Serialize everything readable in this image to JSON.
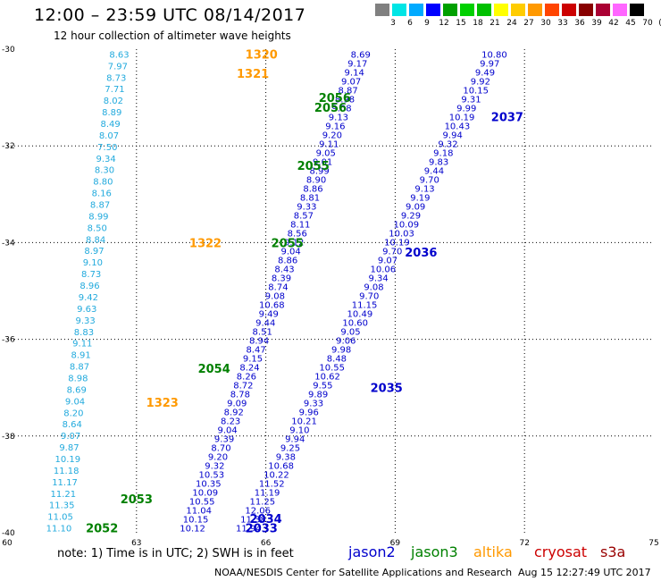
{
  "header": {
    "title": "12:00 – 23:59 UTC 08/14/2017",
    "subtitle": "12 hour collection of altimeter wave heights"
  },
  "scale": {
    "colors": [
      "#808080",
      "#00e5e5",
      "#00aaff",
      "#0000ff",
      "#00a000",
      "#00d000",
      "#00c000",
      "#ffff00",
      "#ffcc00",
      "#ff9900",
      "#ff4400",
      "#cc0000",
      "#880000",
      "#aa0033",
      "#ff66ff",
      "#000000"
    ],
    "labels": [
      "3",
      "6",
      "9",
      "12",
      "15",
      "18",
      "21",
      "24",
      "27",
      "30",
      "33",
      "36",
      "39",
      "42",
      "45",
      "70",
      "(ft)"
    ]
  },
  "axes": {
    "x_ticks": [
      "60",
      "63",
      "66",
      "69",
      "72",
      "75"
    ],
    "y_ticks": [
      "-30",
      "-32",
      "-34",
      "-36",
      "-38",
      "-40"
    ]
  },
  "footer": {
    "note": "note:  1) Time is in UTC;  2) SWH is in feet",
    "legend": [
      {
        "name": "jason2",
        "color": "#0000cc"
      },
      {
        "name": "jason3",
        "color": "#008000"
      },
      {
        "name": "altika",
        "color": "#ff9900"
      },
      {
        "name": "cryosat",
        "color": "#cc0000"
      },
      {
        "name": "s3a",
        "color": "#990000"
      }
    ],
    "credit": "NOAA/NESDIS Center for Satellite Applications and Research",
    "stamp": "Aug 15 12:27:49 UTC 2017"
  },
  "tracks": [
    {
      "color": "#22aadd",
      "lon_start": 62.6,
      "lat_start": -30.1,
      "lon_end": 61.2,
      "lat_end": -39.9,
      "values": [
        "8.63",
        "7.97",
        "8.73",
        "7.71",
        "8.02",
        "8.89",
        "8.49",
        "8.07",
        "7.50",
        "9.34",
        "8.30",
        "8.80",
        "8.16",
        "8.87",
        "8.99",
        "8.50",
        "8.84",
        "8.97",
        "9.10",
        "8.73",
        "8.96",
        "9.42",
        "9.63",
        "9.33",
        "8.83",
        "9.11",
        "8.91",
        "8.87",
        "8.98",
        "8.69",
        "9.04",
        "8.20",
        "8.64",
        "9.07",
        "9.87",
        "10.19",
        "11.18",
        "11.17",
        "11.21",
        "11.35",
        "11.05",
        "11.10"
      ]
    },
    {
      "color": "#0000cc",
      "lon_start": 68.2,
      "lat_start": -30.1,
      "lon_end": 64.3,
      "lat_end": -39.9,
      "values": [
        "8.69",
        "9.17",
        "9.14",
        "9.07",
        "8.87",
        "8.98",
        "9.08",
        "9.13",
        "9.16",
        "9.20",
        "9.11",
        "9.05",
        "9.01",
        "8.99",
        "8.90",
        "8.86",
        "8.81",
        "9.33",
        "8.57",
        "8.11",
        "8.56",
        "9.12",
        "9.04",
        "8.86",
        "8.43",
        "8.39",
        "8.74",
        "9.08",
        "10.68",
        "9.49",
        "9.44",
        "8.51",
        "8.94",
        "8.47",
        "9.15",
        "8.24",
        "8.26",
        "8.72",
        "8.78",
        "9.09",
        "8.92",
        "8.23",
        "9.04",
        "9.39",
        "8.70",
        "9.20",
        "9.32",
        "10.53",
        "10.35",
        "10.09",
        "10.55",
        "11.04",
        "10.15",
        "10.12"
      ]
    },
    {
      "color": "#0000cc",
      "lon_start": 71.3,
      "lat_start": -30.1,
      "lon_end": 65.6,
      "lat_end": -39.9,
      "values": [
        "10.80",
        "9.97",
        "9.49",
        "9.92",
        "10.15",
        "9.31",
        "9.99",
        "10.19",
        "10.43",
        "9.94",
        "9.32",
        "9.18",
        "9.83",
        "9.44",
        "9.70",
        "9.13",
        "9.19",
        "9.09",
        "9.29",
        "10.09",
        "10.03",
        "10.19",
        "9.70",
        "9.07",
        "10.06",
        "9.34",
        "9.08",
        "9.70",
        "11.15",
        "10.49",
        "10.60",
        "9.05",
        "9.06",
        "9.98",
        "8.48",
        "10.55",
        "10.62",
        "9.55",
        "9.89",
        "9.33",
        "9.96",
        "10.21",
        "9.10",
        "9.94",
        "9.25",
        "9.38",
        "10.68",
        "10.22",
        "11.52",
        "11.19",
        "11.25",
        "12.06",
        "11.38",
        "11.94"
      ]
    }
  ],
  "passes": [
    {
      "text": "1320",
      "color": "#ff9900",
      "lon": 65.9,
      "lat": -30.1
    },
    {
      "text": "1321",
      "color": "#ff9900",
      "lon": 65.7,
      "lat": -30.5
    },
    {
      "text": "1322",
      "color": "#ff9900",
      "lon": 64.6,
      "lat": -34.0
    },
    {
      "text": "1323",
      "color": "#ff9900",
      "lon": 63.6,
      "lat": -37.3
    },
    {
      "text": "2056",
      "color": "#008000",
      "lon": 67.6,
      "lat": -31.0
    },
    {
      "text": "2056",
      "color": "#008000",
      "lon": 67.5,
      "lat": -31.2
    },
    {
      "text": "2055",
      "color": "#008000",
      "lon": 67.1,
      "lat": -32.4
    },
    {
      "text": "2055",
      "color": "#008000",
      "lon": 66.5,
      "lat": -34.0
    },
    {
      "text": "2054",
      "color": "#008000",
      "lon": 64.8,
      "lat": -36.6
    },
    {
      "text": "2053",
      "color": "#008000",
      "lon": 63.0,
      "lat": -39.3
    },
    {
      "text": "2052",
      "color": "#008000",
      "lon": 62.2,
      "lat": -39.9
    },
    {
      "text": "2037",
      "color": "#0000cc",
      "lon": 71.6,
      "lat": -31.4
    },
    {
      "text": "2036",
      "color": "#0000cc",
      "lon": 69.6,
      "lat": -34.2
    },
    {
      "text": "2035",
      "color": "#0000cc",
      "lon": 68.8,
      "lat": -37.0
    },
    {
      "text": "2034",
      "color": "#0000cc",
      "lon": 66.0,
      "lat": -39.7
    },
    {
      "text": "2033",
      "color": "#0000cc",
      "lon": 65.9,
      "lat": -39.9
    }
  ]
}
